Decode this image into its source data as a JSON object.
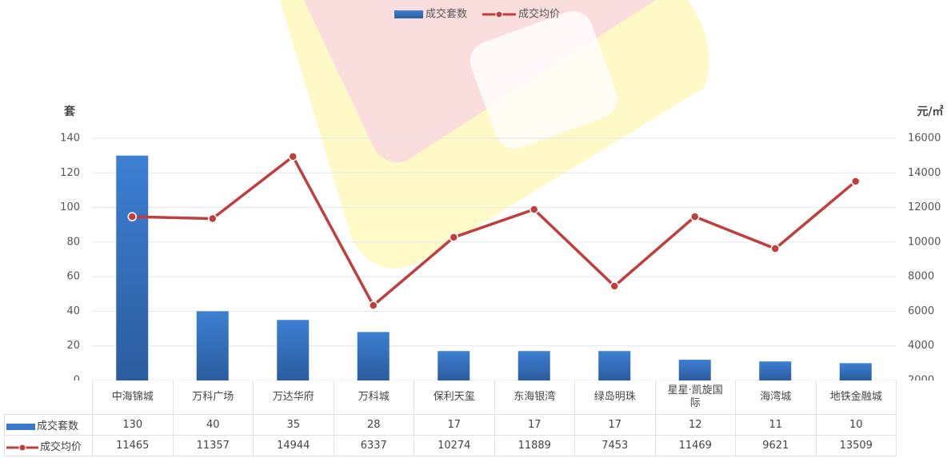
{
  "chart_data": {
    "type": "bar_line",
    "categories": [
      "中海锦城",
      "万科广场",
      "万达华府",
      "万科城",
      "保利天玺",
      "东海银湾",
      "绿岛明珠",
      "星星·凯旋国际",
      "海湾城",
      "地铁金融城"
    ],
    "series": [
      {
        "name": "成交套数",
        "color": "#3a78c9",
        "values": [
          130,
          40,
          35,
          28,
          17,
          17,
          17,
          12,
          11,
          10
        ]
      },
      {
        "name": "成交均价",
        "color": "#bf3f3f",
        "axis": "y2",
        "values": [
          11465,
          11357,
          14944,
          6337,
          10274,
          11889,
          7453,
          11469,
          9621,
          13509
        ]
      }
    ],
    "ylabel": "套",
    "y2label": "元/㎡",
    "ylim": [
      0,
      140
    ],
    "yticks": [
      0,
      20,
      40,
      60,
      80,
      100,
      120,
      140
    ],
    "y2lim": [
      2000,
      16000
    ],
    "y2ticks": [
      2000,
      4000,
      6000,
      8000,
      10000,
      12000,
      14000,
      16000
    ],
    "grid": true
  }
}
